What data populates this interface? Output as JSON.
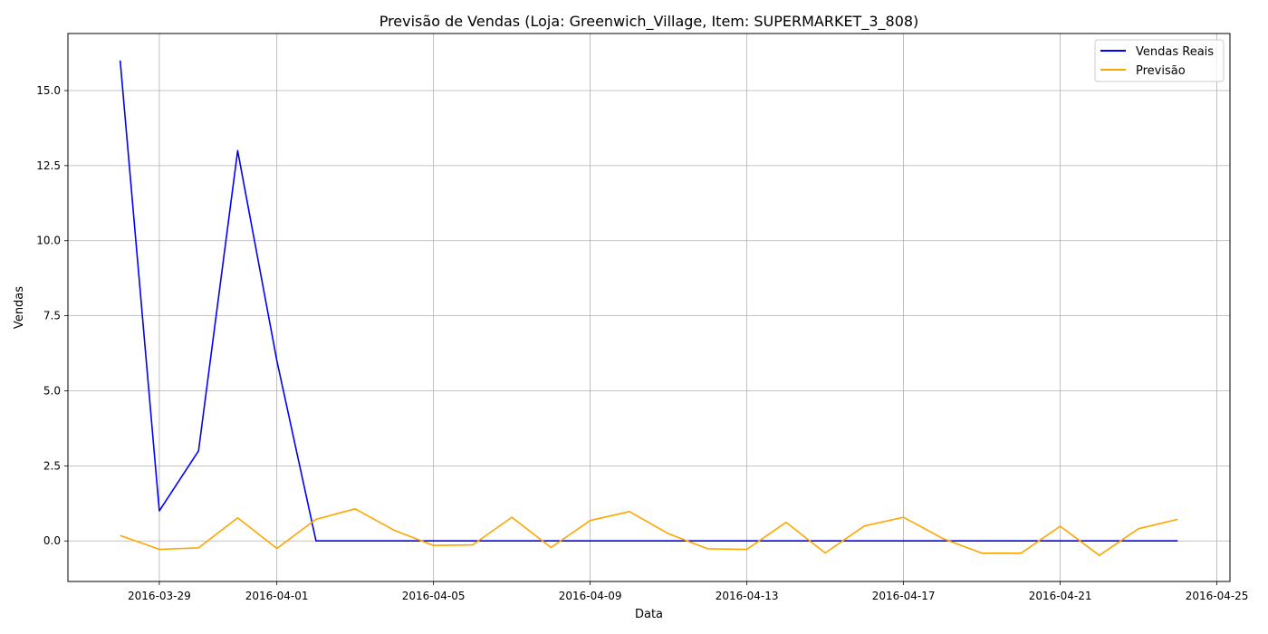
{
  "chart_data": {
    "type": "line",
    "title": "Previsão de Vendas (Loja: Greenwich_Village, Item: SUPERMARKET_3_808)",
    "xlabel": "Data",
    "ylabel": "Vendas",
    "x_range": [
      "2016-03-26T16:00",
      "2016-04-25T08:00"
    ],
    "ylim": [
      -1.35,
      16.9
    ],
    "x_ticks": [
      "2016-03-29",
      "2016-04-01",
      "2016-04-05",
      "2016-04-09",
      "2016-04-13",
      "2016-04-17",
      "2016-04-21",
      "2016-04-25"
    ],
    "y_ticks": [
      0.0,
      2.5,
      5.0,
      7.5,
      10.0,
      12.5,
      15.0
    ],
    "y_tick_labels": [
      "0.0",
      "2.5",
      "5.0",
      "7.5",
      "10.0",
      "12.5",
      "15.0"
    ],
    "grid": true,
    "legend_position": "top-right",
    "x": [
      "2016-03-28",
      "2016-03-29",
      "2016-03-30",
      "2016-03-31",
      "2016-04-01",
      "2016-04-02",
      "2016-04-03",
      "2016-04-04",
      "2016-04-05",
      "2016-04-06",
      "2016-04-07",
      "2016-04-08",
      "2016-04-09",
      "2016-04-10",
      "2016-04-11",
      "2016-04-12",
      "2016-04-13",
      "2016-04-14",
      "2016-04-15",
      "2016-04-16",
      "2016-04-17",
      "2016-04-18",
      "2016-04-19",
      "2016-04-20",
      "2016-04-21",
      "2016-04-22",
      "2016-04-23",
      "2016-04-24"
    ],
    "series": [
      {
        "name": "Vendas Reais",
        "color": "#0000ff",
        "values": [
          16,
          1,
          3,
          13,
          6,
          0,
          0,
          0,
          0,
          0,
          0,
          0,
          0,
          0,
          0,
          0,
          0,
          0,
          0,
          0,
          0,
          0,
          0,
          0,
          0,
          0,
          0,
          0
        ]
      },
      {
        "name": "Previsão",
        "color": "#ffa500",
        "values": [
          0.18,
          -0.28,
          -0.23,
          0.77,
          -0.25,
          0.72,
          1.07,
          0.35,
          -0.15,
          -0.13,
          0.79,
          -0.22,
          0.68,
          0.98,
          0.24,
          -0.26,
          -0.28,
          0.62,
          -0.4,
          0.5,
          0.79,
          0.08,
          -0.41,
          -0.41,
          0.49,
          -0.48,
          0.41,
          0.72
        ]
      }
    ]
  }
}
